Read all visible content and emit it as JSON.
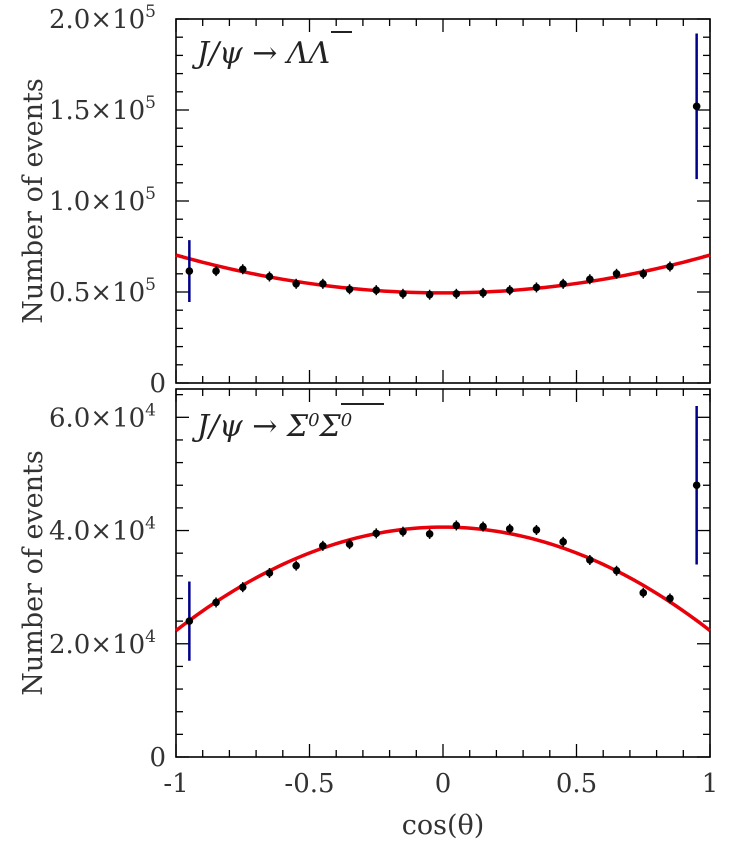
{
  "chart_data": [
    {
      "type": "scatter",
      "title": "J/ψ → ΛΛ̄",
      "title_main": "J/ψ → Λ",
      "title_bar": "Λ",
      "ylabel": "Number of events",
      "xlabel": "",
      "xlim": [
        -1,
        1
      ],
      "ylim": [
        0,
        200000
      ],
      "y_ticks": [
        {
          "value": 0,
          "label": "0"
        },
        {
          "value": 50000,
          "label": "0.5×10",
          "exp": "5"
        },
        {
          "value": 100000,
          "label": "1.0×10",
          "exp": "5"
        },
        {
          "value": 150000,
          "label": "1.5×10",
          "exp": "5"
        },
        {
          "value": 200000,
          "label": "2.0×10",
          "exp": "5"
        }
      ],
      "colors": {
        "points": "#000000",
        "edge_errors": "#00008b",
        "fit": "#e8000b"
      },
      "series": [
        {
          "kind": "points",
          "x": [
            -0.95,
            -0.85,
            -0.75,
            -0.65,
            -0.55,
            -0.45,
            -0.35,
            -0.25,
            -0.15,
            -0.05,
            0.05,
            0.15,
            0.25,
            0.35,
            0.45,
            0.55,
            0.65,
            0.75,
            0.85,
            0.95
          ],
          "y": [
            61500,
            61500,
            62500,
            58500,
            54500,
            54500,
            51500,
            51000,
            49000,
            48500,
            49000,
            49500,
            51000,
            52500,
            54500,
            57000,
            60000,
            60000,
            64000,
            152000
          ],
          "yerr": [
            17000,
            0,
            0,
            0,
            0,
            0,
            0,
            0,
            0,
            0,
            0,
            0,
            0,
            0,
            0,
            0,
            0,
            0,
            0,
            40000
          ]
        },
        {
          "kind": "fit",
          "function": "A*(1+alpha*x^2)",
          "A": 49500,
          "alpha": 0.42
        }
      ]
    },
    {
      "type": "scatter",
      "title": "J/ψ → Σ0Σ̄0",
      "title_main": "J/ψ → Σ",
      "title_sup": "0",
      "title_bar": "Σ",
      "title_bar_sup": "0",
      "ylabel": "Number of events",
      "xlabel": "cos(θ)",
      "xlim": [
        -1,
        1
      ],
      "ylim": [
        0,
        65000
      ],
      "x_ticks": [
        {
          "value": -1,
          "label": "-1"
        },
        {
          "value": -0.5,
          "label": "-0.5"
        },
        {
          "value": 0,
          "label": "0"
        },
        {
          "value": 0.5,
          "label": "0.5"
        },
        {
          "value": 1,
          "label": "1"
        }
      ],
      "y_ticks": [
        {
          "value": 0,
          "label": "0"
        },
        {
          "value": 20000,
          "label": "2.0×10",
          "exp": "4"
        },
        {
          "value": 40000,
          "label": "4.0×10",
          "exp": "4"
        },
        {
          "value": 60000,
          "label": "6.0×10",
          "exp": "4"
        }
      ],
      "colors": {
        "points": "#000000",
        "edge_errors": "#00008b",
        "fit": "#e8000b"
      },
      "series": [
        {
          "kind": "points",
          "x": [
            -0.95,
            -0.85,
            -0.75,
            -0.65,
            -0.55,
            -0.45,
            -0.35,
            -0.25,
            -0.15,
            -0.05,
            0.05,
            0.15,
            0.25,
            0.35,
            0.45,
            0.55,
            0.65,
            0.75,
            0.85,
            0.95
          ],
          "y": [
            24000,
            27300,
            30000,
            32500,
            33800,
            37300,
            37600,
            39500,
            39800,
            39400,
            40900,
            40700,
            40300,
            40100,
            38000,
            34800,
            32900,
            29000,
            28000,
            48000
          ],
          "yerr": [
            7000,
            0,
            0,
            0,
            0,
            0,
            0,
            0,
            0,
            0,
            0,
            0,
            0,
            0,
            0,
            0,
            0,
            0,
            0,
            14000
          ]
        },
        {
          "kind": "fit",
          "function": "A*(1+alpha*x^2)",
          "A": 40600,
          "alpha": -0.45
        }
      ]
    }
  ]
}
